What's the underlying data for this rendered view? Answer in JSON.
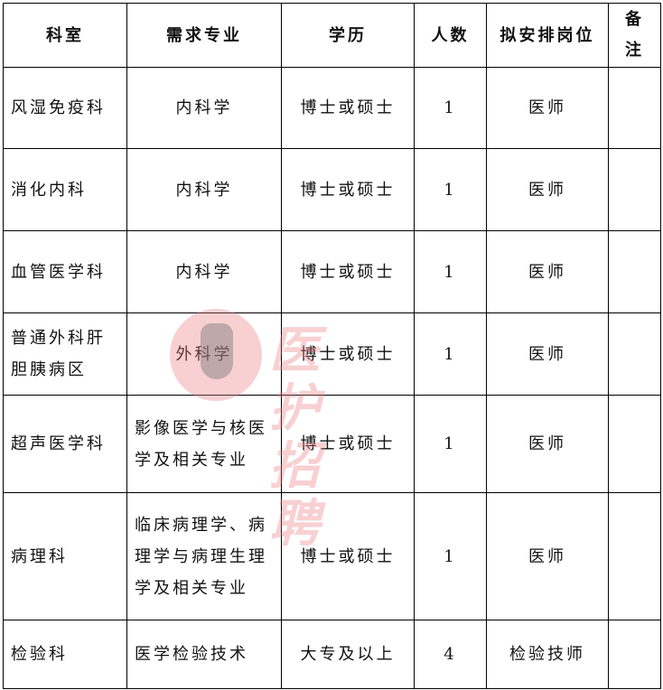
{
  "table": {
    "headers": [
      "科室",
      "需求专业",
      "学历",
      "人数",
      "拟安排岗位",
      "备注"
    ],
    "rows": [
      [
        "风湿免疫科",
        "内科学",
        "博士或硕士",
        "1",
        "医师",
        ""
      ],
      [
        "消化内科",
        "内科学",
        "博士或硕士",
        "1",
        "医师",
        ""
      ],
      [
        "血管医学科",
        "内科学",
        "博士或硕士",
        "1",
        "医师",
        ""
      ],
      [
        "普通外科肝胆胰病区",
        "外科学",
        "博士或硕士",
        "1",
        "医师",
        ""
      ],
      [
        "超声医学科",
        "影像医学与核医学及相关专业",
        "博士或硕士",
        "1",
        "医师",
        ""
      ],
      [
        "病理科",
        "临床病理学、病理学与病理生理学及相关专业",
        "博士或硕士",
        "1",
        "医师",
        ""
      ],
      [
        "检验科",
        "医学检验技术",
        "大专及以上",
        "4",
        "检验技师",
        ""
      ]
    ]
  },
  "watermark": {
    "text": "医护招聘",
    "color": "#ec787d"
  }
}
